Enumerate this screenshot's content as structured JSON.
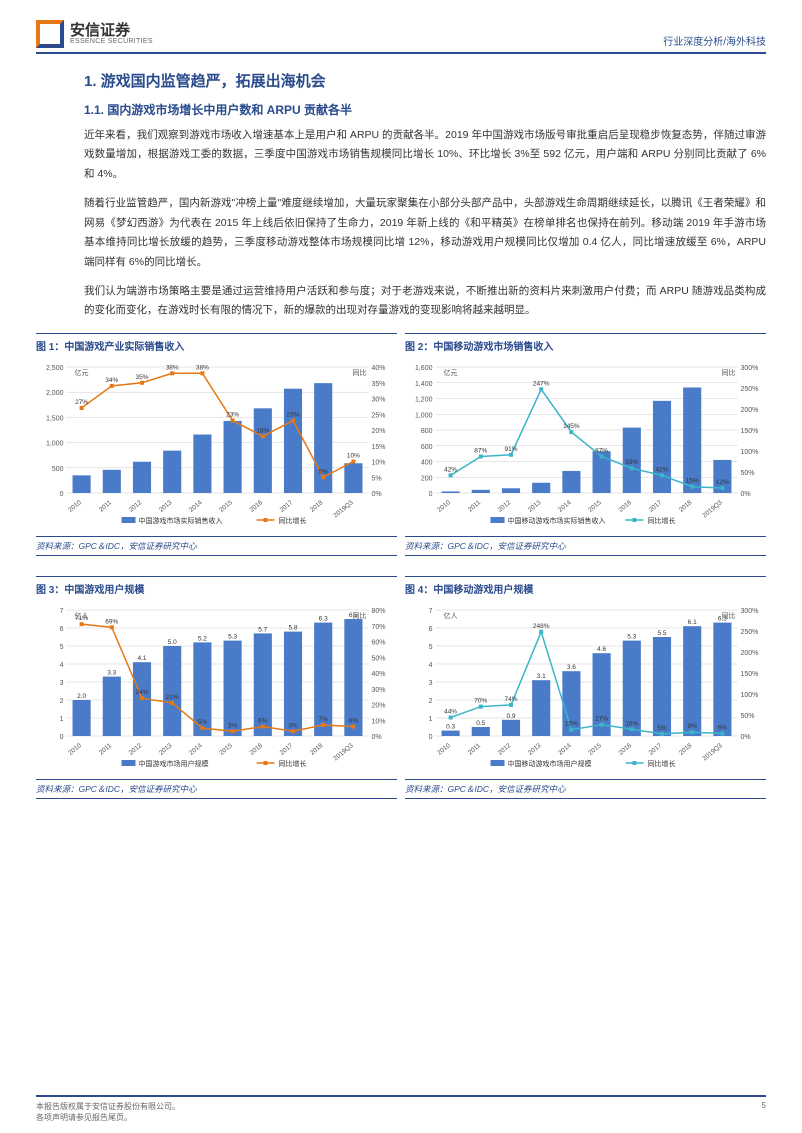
{
  "header": {
    "logo_cn": "安信证券",
    "logo_en": "ESSENCE SECURITIES",
    "right": "行业深度分析/海外科技"
  },
  "sec1": {
    "h1": "1. 游戏国内监管趋严，拓展出海机会",
    "h2": "1.1. 国内游戏市场增长中用户数和 ARPU 贡献各半",
    "p1": "近年来看，我们观察到游戏市场收入增速基本上是用户和 ARPU 的贡献各半。2019 年中国游戏市场版号审批重启后呈现稳步恢复态势，伴随过审游戏数量增加，根据游戏工委的数据，三季度中国游戏市场销售规模同比增长 10%、环比增长 3%至 592 亿元，用户端和 ARPU 分别同比贡献了 6%和 4%。",
    "p2": "随着行业监管趋严，国内新游戏\"冲榜上量\"难度继续增加，大量玩家聚集在小部分头部产品中，头部游戏生命周期继续延长，以腾讯《王者荣耀》和网易《梦幻西游》为代表在 2015 年上线后依旧保持了生命力，2019 年新上线的《和平精英》在榜单排名也保持在前列。移动端 2019 年手游市场基本维持同比增长放缓的趋势，三季度移动游戏整体市场规模同比增 12%，移动游戏用户规模同比仅增加 0.4 亿人，同比增速放缓至 6%，ARPU 端同样有 6%的同比增长。",
    "p3": "我们认为端游市场策略主要是通过运营维持用户活跃和参与度；对于老游戏来说，不断推出新的资料片来刺激用户付费；而 ARPU 随游戏品类构成的变化而变化，在游戏时长有限的情况下，新的爆款的出现对存量游戏的变现影响将越来越明显。"
  },
  "source": "资料来源：GPC＆IDC，安信证券研究中心",
  "years": [
    "2010",
    "2011",
    "2012",
    "2013",
    "2014",
    "2015",
    "2016",
    "2017",
    "2018",
    "2019Q3"
  ],
  "c1": {
    "title": "图 1：中国游戏产业实际销售收入",
    "ylabel": "亿元",
    "y2label": "同比",
    "ylim": [
      0,
      2500
    ],
    "ystep": 500,
    "y2lim": [
      0,
      40
    ],
    "y2step": 5,
    "bars": [
      350,
      460,
      620,
      840,
      1160,
      1430,
      1680,
      2070,
      2180,
      590
    ],
    "line": [
      27,
      34,
      35,
      38,
      38,
      23,
      18,
      23,
      5,
      10
    ],
    "labels": [
      "27%",
      "34%",
      "35%",
      "38%",
      "38%",
      "23%",
      "18%",
      "23%",
      "5%",
      "10%"
    ],
    "bar_color": "#4a7bc8",
    "line_color": "#e67817",
    "legend": [
      "中国游戏市场实际销售收入",
      "同比增长"
    ]
  },
  "c2": {
    "title": "图 2：中国移动游戏市场销售收入",
    "ylabel": "亿元",
    "y2label": "同比",
    "ylim": [
      0,
      1600
    ],
    "ystep": 200,
    "y2lim": [
      0,
      300
    ],
    "y2step": 50,
    "bars": [
      20,
      40,
      60,
      130,
      280,
      530,
      830,
      1170,
      1340,
      420
    ],
    "line": [
      42,
      87,
      91,
      247,
      145,
      87,
      59,
      42,
      15,
      12
    ],
    "labels": [
      "42%",
      "87%",
      "91%",
      "247%",
      "145%",
      "87%",
      "59%",
      "42%",
      "15%",
      "12%"
    ],
    "bar_color": "#4a7bc8",
    "line_color": "#3ab5c9",
    "legend": [
      "中国移动游戏市场实际销售收入",
      "同比增长"
    ]
  },
  "c3": {
    "title": "图 3：中国游戏用户规模",
    "ylabel": "亿人",
    "y2label": "同比",
    "ylim": [
      0,
      7
    ],
    "ystep": 1,
    "y2lim": [
      0,
      80
    ],
    "y2step": 10,
    "bars": [
      2.0,
      3.3,
      4.1,
      5.0,
      5.2,
      5.3,
      5.7,
      5.8,
      6.3,
      6.5
    ],
    "line": [
      71,
      69,
      24,
      21,
      5,
      3,
      6,
      3,
      7,
      6
    ],
    "bar_labels": [
      "2.0",
      "3.3",
      "4.1",
      "5.0",
      "5.2",
      "5.3",
      "5.7",
      "5.8",
      "6.3",
      "6.5"
    ],
    "labels": [
      "71%",
      "69%",
      "24%",
      "21%",
      "5%",
      "3%",
      "6%",
      "3%",
      "7%",
      "6%"
    ],
    "bar_color": "#4a7bc8",
    "line_color": "#e67817",
    "legend": [
      "中国游戏市场用户规模",
      "同比增长"
    ]
  },
  "c4": {
    "title": "图 4：中国移动游戏用户规模",
    "ylabel": "亿人",
    "y2label": "同比",
    "ylim": [
      0,
      7
    ],
    "ystep": 1,
    "y2lim": [
      0,
      300
    ],
    "y2step": 50,
    "bars": [
      0.3,
      0.5,
      0.9,
      3.1,
      3.6,
      4.6,
      5.3,
      5.5,
      6.1,
      6.3
    ],
    "line": [
      44,
      70,
      74,
      248,
      15,
      27,
      16,
      5,
      9,
      6
    ],
    "bar_labels": [
      "0.3",
      "0.5",
      "0.9",
      "3.1",
      "3.6",
      "4.6",
      "5.3",
      "5.5",
      "6.1",
      "6.3"
    ],
    "labels": [
      "44%",
      "70%",
      "74%",
      "248%",
      "15%",
      "27%",
      "16%",
      "5%",
      "9%",
      "6%"
    ],
    "bar_color": "#4a7bc8",
    "line_color": "#3ab5c9",
    "legend": [
      "中国移动游戏市场用户规模",
      "同比增长"
    ]
  },
  "footer": {
    "left1": "本报告版权属于安信证券股份有限公司。",
    "left2": "各项声明请参见报告尾页。",
    "page": "5"
  }
}
